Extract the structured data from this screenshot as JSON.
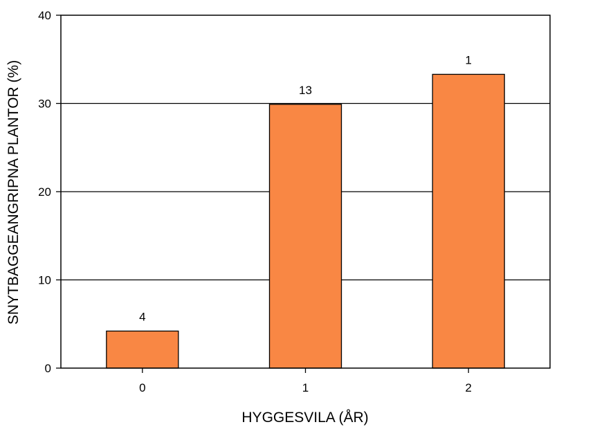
{
  "chart_data": {
    "type": "bar",
    "categories": [
      "0",
      "1",
      "2"
    ],
    "values": [
      4.2,
      29.9,
      33.3
    ],
    "data_labels": [
      "4",
      "13",
      "1"
    ],
    "xlabel": "HYGGESVILA (ÅR)",
    "ylabel": "SNYTBAGGEANGRIPNA PLANTOR (%)",
    "ylim": [
      0,
      40
    ],
    "yticks": [
      "0",
      "10",
      "20",
      "30",
      "40"
    ],
    "grid": "horizontal",
    "legend": "none",
    "colors": {
      "bar": "#F98744",
      "bar_outline": "#000000",
      "grid": "#000000"
    }
  }
}
